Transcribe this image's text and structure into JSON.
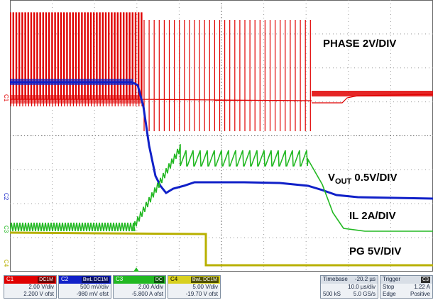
{
  "labels": {
    "phase": "PHASE 2V/DIV",
    "vout_main": "V",
    "vout_sub": "OUT",
    "vout_rest": " 0.5V/DIV",
    "il": "IL 2A/DIV",
    "pg": "PG 5V/DIV"
  },
  "markers": {
    "c1": "C1",
    "c2": "C2",
    "c3": "C3",
    "c4": "C4"
  },
  "colors": {
    "c1": "#e00000",
    "c2": "#1020c8",
    "c3": "#22b822",
    "c4": "#b8b000"
  },
  "channels": [
    {
      "name": "C1",
      "tag": "DC1M",
      "vdiv": "2.00 V/div",
      "offset": "2.200 V ofst",
      "color": "#e00000"
    },
    {
      "name": "C2",
      "tag": "BwL DC1M",
      "vdiv": "500 mV/div",
      "offset": "-980 mV ofst",
      "color": "#1020c8"
    },
    {
      "name": "C3",
      "tag": "DC",
      "vdiv": "2.00 A/div",
      "offset": "-5.800 A ofst",
      "color": "#22b822"
    },
    {
      "name": "C4",
      "tag": "BwL DC1M",
      "vdiv": "5.00 V/div",
      "offset": "-19.70 V ofst",
      "color": "#b8b000"
    }
  ],
  "timebase": {
    "label": "Timebase",
    "delay": "-20.2 µs",
    "tdiv": "10.0 µs/div",
    "samples": "500 kS",
    "rate": "5.0 GS/s"
  },
  "trigger": {
    "label": "Trigger",
    "tag": "C3",
    "mode": "Stop",
    "level": "1.22 A",
    "type": "Edge",
    "slope": "Positive"
  }
}
